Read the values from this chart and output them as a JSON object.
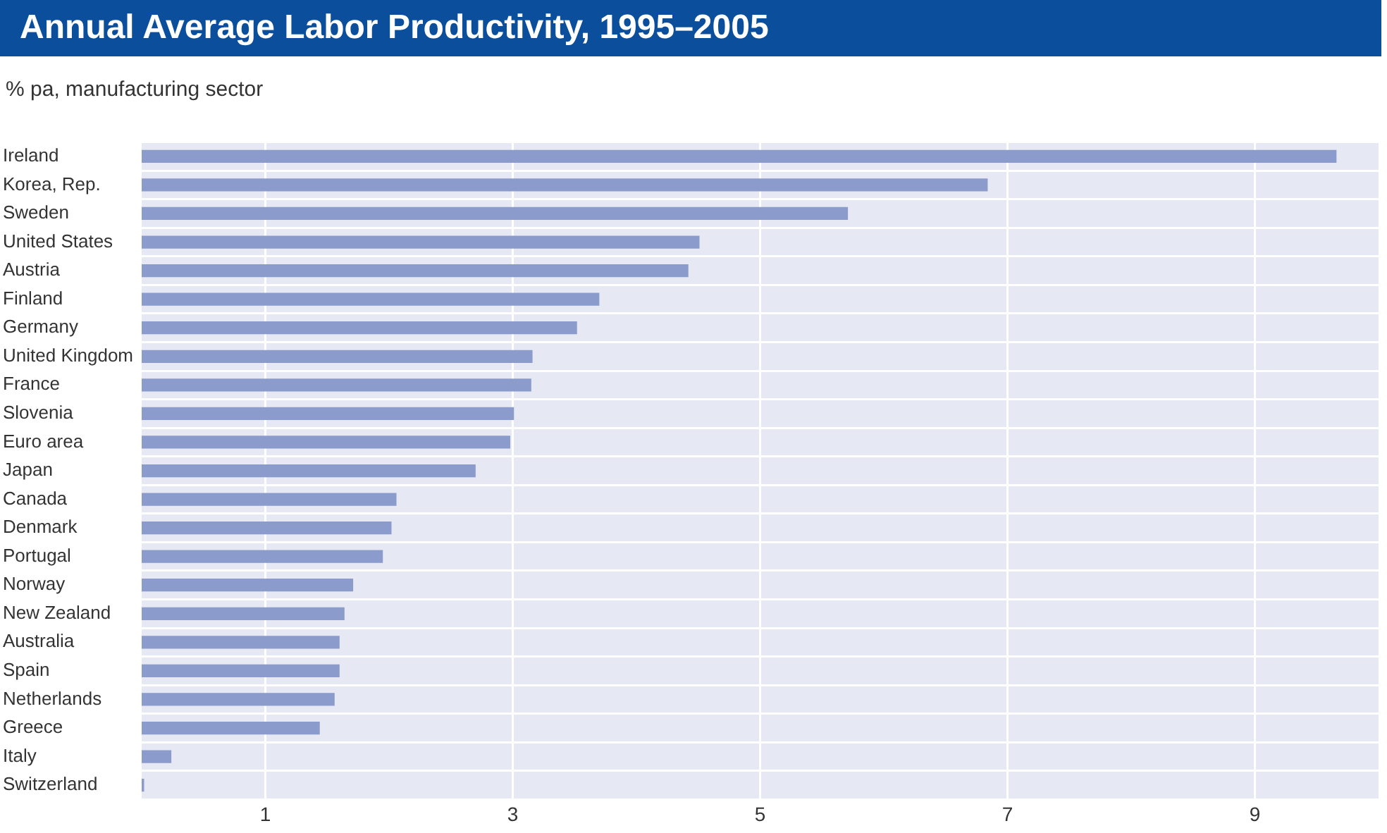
{
  "chart_data": {
    "type": "bar",
    "orientation": "horizontal",
    "title": "Annual Average Labor Productivity, 1995–2005",
    "subtitle": "% pa, manufacturing sector",
    "categories": [
      "Ireland",
      "Korea, Rep.",
      "Sweden",
      "United States",
      "Austria",
      "Finland",
      "Germany",
      "United Kingdom",
      "France",
      "Slovenia",
      "Euro area",
      "Japan",
      "Canada",
      "Denmark",
      "Portugal",
      "Norway",
      "New Zealand",
      "Australia",
      "Spain",
      "Netherlands",
      "Greece",
      "Italy",
      "Switzerland"
    ],
    "values": [
      9.66,
      6.84,
      5.71,
      4.51,
      4.42,
      3.7,
      3.52,
      3.16,
      3.15,
      3.01,
      2.98,
      2.7,
      2.06,
      2.02,
      1.95,
      1.71,
      1.64,
      1.6,
      1.6,
      1.56,
      1.44,
      0.24,
      0.02
    ],
    "color": "#8b9bcc",
    "xlim": [
      0,
      10
    ],
    "xticks": [
      1,
      3,
      5,
      7,
      9
    ],
    "grid": true,
    "legend": false
  }
}
